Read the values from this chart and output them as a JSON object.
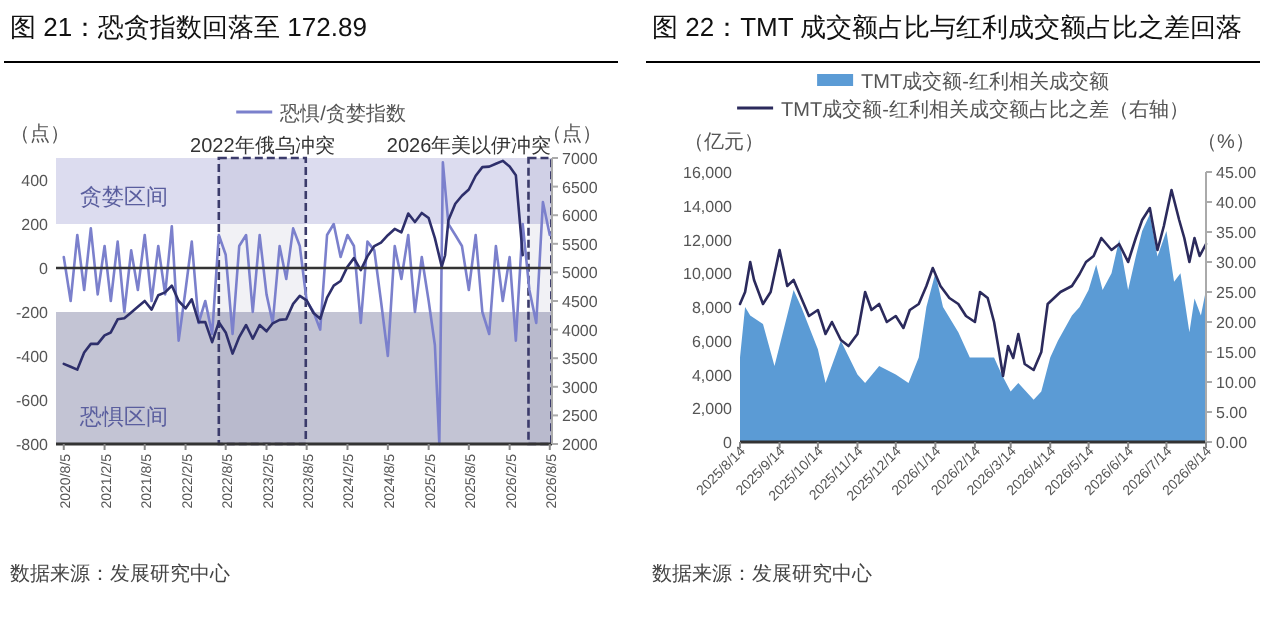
{
  "chart_data": [
    {
      "type": "line",
      "title": "图 21：恐贪指数回落至 172.89",
      "ylabel": "（点）",
      "y2label": "（点）",
      "legend": "top",
      "xlim": [
        "2020-07-01",
        "2026-08-15"
      ],
      "xticks": [
        {
          "value": "2020-08-05",
          "label": "2020/8/5"
        },
        {
          "value": "2021-02-05",
          "label": "2021/2/5"
        },
        {
          "value": "2021-08-05",
          "label": "2021/8/5"
        },
        {
          "value": "2022-02-05",
          "label": "2022/2/5"
        },
        {
          "value": "2022-08-05",
          "label": "2022/8/5"
        },
        {
          "value": "2023-02-05",
          "label": "2023/2/5"
        },
        {
          "value": "2023-08-05",
          "label": "2023/8/5"
        },
        {
          "value": "2024-02-05",
          "label": "2024/2/5"
        },
        {
          "value": "2024-08-05",
          "label": "2024/8/5"
        },
        {
          "value": "2025-02-05",
          "label": "2025/2/5"
        },
        {
          "value": "2025-08-05",
          "label": "2025/8/5"
        },
        {
          "value": "2026-02-05",
          "label": "2026/2/5"
        },
        {
          "value": "2026-08-05",
          "label": "2026/8/5"
        }
      ],
      "ylim": [
        -800,
        500
      ],
      "yticks": [
        -800,
        -600,
        -400,
        -200,
        0,
        200,
        400
      ],
      "y2lim": [
        2000,
        7000
      ],
      "y2ticks": [
        2000,
        2500,
        3000,
        3500,
        4000,
        4500,
        5000,
        5500,
        6000,
        6500,
        7000
      ],
      "bands": [
        {
          "axis": "y",
          "from": 200,
          "to": 500,
          "label": "贪婪区间",
          "color": "#dcdcef"
        },
        {
          "axis": "y",
          "from": -800,
          "to": -200,
          "label": "恐惧区间",
          "color": "#c3c4d4"
        },
        {
          "axis": "x",
          "from": "2022-07-05",
          "to": "2023-08-01",
          "label": "2022年俄乌冲突",
          "color": "#3b3b6b"
        },
        {
          "axis": "x",
          "from": "2026-05-01",
          "to": "2026-08-12",
          "label": "2026年美以伊冲突",
          "color": "#3b3b6b"
        }
      ],
      "ref_lines": [
        {
          "axis": "y",
          "value": 0,
          "color": "#333333"
        }
      ],
      "series": [
        {
          "name": "恐惧/贪婪指数",
          "color": "#7b80cc",
          "x": [
            "2020-08-05",
            "2020-09-05",
            "2020-10-05",
            "2020-11-05",
            "2020-12-05",
            "2021-01-05",
            "2021-02-05",
            "2021-03-05",
            "2021-04-05",
            "2021-05-05",
            "2021-06-05",
            "2021-07-05",
            "2021-08-05",
            "2021-09-05",
            "2021-10-05",
            "2021-11-05",
            "2021-12-05",
            "2022-01-05",
            "2022-02-05",
            "2022-03-05",
            "2022-04-05",
            "2022-05-05",
            "2022-06-05",
            "2022-07-05",
            "2022-08-05",
            "2022-09-05",
            "2022-10-05",
            "2022-11-05",
            "2022-12-05",
            "2023-01-05",
            "2023-02-05",
            "2023-03-05",
            "2023-04-05",
            "2023-05-05",
            "2023-06-05",
            "2023-07-05",
            "2023-08-05",
            "2023-09-05",
            "2023-10-05",
            "2023-11-05",
            "2023-12-05",
            "2024-01-05",
            "2024-02-05",
            "2024-03-05",
            "2024-04-05",
            "2024-05-05",
            "2024-06-05",
            "2024-07-05",
            "2024-08-05",
            "2024-09-05",
            "2024-10-05",
            "2024-11-05",
            "2024-12-05",
            "2025-01-05",
            "2025-02-05",
            "2025-03-05",
            "2025-03-25",
            "2025-04-10",
            "2025-05-05",
            "2025-06-05",
            "2025-07-05",
            "2025-08-05",
            "2025-09-05",
            "2025-10-05",
            "2025-11-05",
            "2025-12-05",
            "2026-01-05",
            "2026-02-05",
            "2026-03-05",
            "2026-04-05",
            "2026-05-05",
            "2026-06-05",
            "2026-07-05",
            "2026-08-05"
          ],
          "values": [
            50,
            -150,
            150,
            -100,
            180,
            -120,
            100,
            -150,
            120,
            -200,
            80,
            -100,
            150,
            -150,
            100,
            -120,
            190,
            -330,
            -100,
            120,
            -250,
            -150,
            -300,
            150,
            60,
            -300,
            100,
            150,
            -200,
            150,
            -120,
            -250,
            100,
            -50,
            180,
            100,
            -150,
            -200,
            -280,
            150,
            200,
            50,
            150,
            100,
            -250,
            120,
            80,
            -150,
            -400,
            100,
            -50,
            150,
            -200,
            50,
            -150,
            -350,
            -800,
            480,
            200,
            150,
            100,
            -100,
            150,
            -200,
            -300,
            100,
            -150,
            50,
            -330,
            200,
            -100,
            -250,
            300,
            150
          ]
        },
        {
          "color": "#2e2f6b",
          "axis": "y2",
          "x": [
            "2020-08-05",
            "2020-09-05",
            "2020-10-05",
            "2020-11-05",
            "2020-12-05",
            "2021-01-05",
            "2021-02-05",
            "2021-03-05",
            "2021-04-05",
            "2021-05-05",
            "2021-06-05",
            "2021-07-05",
            "2021-08-05",
            "2021-09-05",
            "2021-10-05",
            "2021-11-05",
            "2021-12-05",
            "2022-01-05",
            "2022-02-05",
            "2022-03-05",
            "2022-04-05",
            "2022-05-05",
            "2022-06-05",
            "2022-07-05",
            "2022-08-05",
            "2022-09-05",
            "2022-10-05",
            "2022-11-05",
            "2022-12-05",
            "2023-01-05",
            "2023-02-05",
            "2023-03-05",
            "2023-04-05",
            "2023-05-05",
            "2023-06-05",
            "2023-07-05",
            "2023-08-05",
            "2023-09-05",
            "2023-10-05",
            "2023-11-05",
            "2023-12-05",
            "2024-01-05",
            "2024-02-05",
            "2024-03-05",
            "2024-04-05",
            "2024-05-05",
            "2024-06-05",
            "2024-07-05",
            "2024-08-05",
            "2024-09-05",
            "2024-10-05",
            "2024-11-05",
            "2024-12-05",
            "2025-01-05",
            "2025-02-05",
            "2025-03-05",
            "2025-04-05",
            "2025-04-20",
            "2025-05-05",
            "2025-06-05",
            "2025-07-05",
            "2025-08-05",
            "2025-09-05",
            "2025-10-05",
            "2025-11-05",
            "2025-12-05",
            "2026-01-05",
            "2026-02-05",
            "2026-03-05",
            "2026-04-05"
          ],
          "values": [
            3400,
            3350,
            3300,
            3600,
            3750,
            3750,
            3900,
            3950,
            4180,
            4200,
            4300,
            4400,
            4500,
            4350,
            4600,
            4650,
            4770,
            4500,
            4370,
            4530,
            4130,
            4130,
            3780,
            4130,
            3950,
            3580,
            3870,
            4080,
            3840,
            4080,
            3970,
            4110,
            4170,
            4180,
            4450,
            4590,
            4510,
            4290,
            4190,
            4560,
            4770,
            4850,
            5100,
            5250,
            5040,
            5280,
            5460,
            5520,
            5650,
            5760,
            5700,
            6030,
            5880,
            6040,
            5950,
            5600,
            5100,
            5300,
            5910,
            6200,
            6340,
            6450,
            6690,
            6840,
            6850,
            6900,
            6950,
            6850,
            6700,
            5300
          ]
        }
      ],
      "annotations": [
        "数据来源：发展研究中心"
      ]
    },
    {
      "type": "area",
      "title": "图 22：TMT 成交额占比与红利成交额占比之差回落",
      "ylabel": "（亿元）",
      "y2label": "（%）",
      "legend": "top",
      "xlim": [
        "2025-08-14",
        "2026-08-14"
      ],
      "xticks": [
        {
          "value": "2025-08-14",
          "label": "2025/8/14"
        },
        {
          "value": "2025-09-14",
          "label": "2025/9/14"
        },
        {
          "value": "2025-10-14",
          "label": "2025/10/14"
        },
        {
          "value": "2025-11-14",
          "label": "2025/11/14"
        },
        {
          "value": "2025-12-14",
          "label": "2025/12/14"
        },
        {
          "value": "2026-01-14",
          "label": "2026/1/14"
        },
        {
          "value": "2026-02-14",
          "label": "2026/2/14"
        },
        {
          "value": "2026-03-14",
          "label": "2026/3/14"
        },
        {
          "value": "2026-04-14",
          "label": "2026/4/14"
        },
        {
          "value": "2026-05-14",
          "label": "2026/5/14"
        },
        {
          "value": "2026-06-14",
          "label": "2026/6/14"
        },
        {
          "value": "2026-07-14",
          "label": "2026/7/14"
        },
        {
          "value": "2026-08-14",
          "label": "2026/8/14"
        }
      ],
      "ylim": [
        0,
        16000
      ],
      "yticks": [
        0,
        {
          "value": 2000,
          "label": "2,000"
        },
        {
          "value": 4000,
          "label": "4,000"
        },
        {
          "value": 6000,
          "label": "6,000"
        },
        {
          "value": 8000,
          "label": "8,000"
        },
        {
          "value": 10000,
          "label": "10,000"
        },
        {
          "value": 12000,
          "label": "12,000"
        },
        {
          "value": 14000,
          "label": "14,000"
        },
        {
          "value": 16000,
          "label": "16,000"
        }
      ],
      "y2lim": [
        0,
        45
      ],
      "y2ticks": [
        {
          "value": 0,
          "label": "0.00"
        },
        {
          "value": 5,
          "label": "5.00"
        },
        {
          "value": 10,
          "label": "10.00"
        },
        {
          "value": 15,
          "label": "15.00"
        },
        {
          "value": 20,
          "label": "20.00"
        },
        {
          "value": 25,
          "label": "25.00"
        },
        {
          "value": 30,
          "label": "30.00"
        },
        {
          "value": 35,
          "label": "35.00"
        },
        {
          "value": 40,
          "label": "40.00"
        },
        {
          "value": 45,
          "label": "45.00"
        }
      ],
      "series": [
        {
          "name": "TMT成交额-红利相关成交额",
          "color": "#5b9bd5",
          "x": [
            "2025-08-14",
            "2025-08-18",
            "2025-08-22",
            "2025-09-01",
            "2025-09-10",
            "2025-09-25",
            "2025-10-01",
            "2025-10-14",
            "2025-10-20",
            "2025-11-01",
            "2025-11-14",
            "2025-11-20",
            "2025-12-01",
            "2025-12-14",
            "2025-12-24",
            "2026-01-01",
            "2026-01-07",
            "2026-01-14",
            "2026-01-20",
            "2026-02-01",
            "2026-02-10",
            "2026-02-20",
            "2026-03-01",
            "2026-03-07",
            "2026-03-14",
            "2026-03-20",
            "2026-04-01",
            "2026-04-07",
            "2026-04-14",
            "2026-04-20",
            "2026-05-01",
            "2026-05-07",
            "2026-05-14",
            "2026-05-20",
            "2026-05-25",
            "2026-06-01",
            "2026-06-07",
            "2026-06-14",
            "2026-06-20",
            "2026-06-25",
            "2026-07-01",
            "2026-07-07",
            "2026-07-14",
            "2026-07-20",
            "2026-07-25",
            "2026-08-01",
            "2026-08-05",
            "2026-08-10",
            "2026-08-14"
          ],
          "values": [
            5000,
            8000,
            7500,
            7000,
            4500,
            9000,
            8000,
            5500,
            3500,
            6000,
            4000,
            3500,
            4500,
            4000,
            3500,
            5000,
            8000,
            10000,
            8000,
            6500,
            5000,
            5000,
            5000,
            4000,
            3000,
            3500,
            2500,
            3000,
            5000,
            6000,
            7500,
            8000,
            9000,
            10500,
            9000,
            10000,
            12000,
            9000,
            11000,
            12500,
            13500,
            11000,
            12500,
            9500,
            10000,
            6500,
            8500,
            7500,
            9000
          ]
        },
        {
          "name": "TMT成交额-红利相关成交额占比之差（右轴）",
          "type": "line",
          "color": "#2b2a5c",
          "axis": "y2",
          "x": [
            "2025-08-14",
            "2025-08-18",
            "2025-08-22",
            "2025-08-25",
            "2025-09-01",
            "2025-09-07",
            "2025-09-10",
            "2025-09-14",
            "2025-09-20",
            "2025-09-25",
            "2025-10-01",
            "2025-10-07",
            "2025-10-14",
            "2025-10-20",
            "2025-10-25",
            "2025-11-01",
            "2025-11-07",
            "2025-11-14",
            "2025-11-20",
            "2025-11-25",
            "2025-12-01",
            "2025-12-07",
            "2025-12-14",
            "2025-12-20",
            "2025-12-25",
            "2026-01-01",
            "2026-01-07",
            "2026-01-12",
            "2026-01-18",
            "2026-01-25",
            "2026-02-01",
            "2026-02-07",
            "2026-02-14",
            "2026-02-18",
            "2026-02-24",
            "2026-03-01",
            "2026-03-05",
            "2026-03-08",
            "2026-03-12",
            "2026-03-16",
            "2026-03-20",
            "2026-03-25",
            "2026-04-01",
            "2026-04-07",
            "2026-04-12",
            "2026-04-17",
            "2026-04-22",
            "2026-05-01",
            "2026-05-07",
            "2026-05-12",
            "2026-05-18",
            "2026-05-24",
            "2026-06-01",
            "2026-06-07",
            "2026-06-14",
            "2026-06-20",
            "2026-06-25",
            "2026-07-01",
            "2026-07-07",
            "2026-07-12",
            "2026-07-18",
            "2026-07-24",
            "2026-07-28",
            "2026-08-01",
            "2026-08-05",
            "2026-08-09",
            "2026-08-14"
          ],
          "values": [
            23,
            25,
            30,
            27,
            23,
            25,
            28,
            32,
            26,
            27,
            24,
            21,
            22,
            18,
            20,
            17,
            16,
            18,
            25,
            22,
            23,
            20,
            21,
            19,
            22,
            23,
            26,
            29,
            26,
            24,
            23,
            21,
            20,
            25,
            24,
            20,
            15,
            11,
            16,
            14,
            18,
            13,
            12,
            15,
            23,
            24,
            25,
            26,
            28,
            30,
            31,
            34,
            32,
            33,
            30,
            34,
            37,
            39,
            32,
            36,
            42,
            37,
            34,
            30,
            34,
            31,
            33
          ]
        }
      ],
      "annotations": [
        "数据来源：发展研究中心"
      ]
    }
  ]
}
